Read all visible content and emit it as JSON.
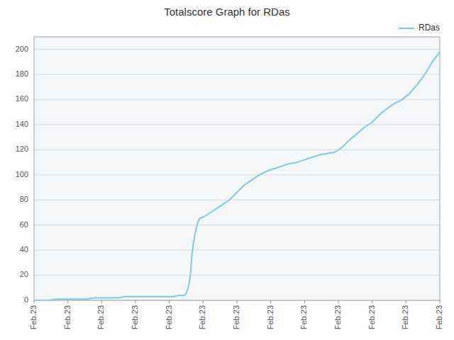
{
  "chart_data": {
    "type": "line",
    "title": "Totalscore Graph for RDas",
    "x": [
      0,
      0.5,
      1,
      1.5,
      2,
      2.5,
      3,
      3.5,
      4,
      4.3,
      4.6,
      5,
      5.3,
      5.6,
      6,
      6.3,
      6.6,
      7,
      7.3,
      7.6,
      8,
      8.3,
      8.6,
      9,
      9.3,
      9.6,
      10,
      10.1,
      10.2,
      10.3,
      10.4,
      10.5,
      10.6,
      10.7,
      10.8,
      10.9,
      11,
      11.5,
      12,
      12.5,
      13,
      13.5,
      14,
      14.5,
      15,
      15.5,
      16,
      16.5,
      17,
      17.5,
      18,
      18.5,
      19,
      19.5,
      20,
      20.5,
      21,
      21.5,
      22,
      22.5,
      23,
      23.5,
      24,
      24.5,
      25,
      25.5,
      26,
      26.5,
      27
    ],
    "series": [
      {
        "name": "RDas",
        "color": "#7ec8e3",
        "values": [
          0,
          0,
          0,
          1,
          1,
          1,
          1,
          1,
          2,
          2,
          2,
          2,
          2,
          2,
          3,
          3,
          3,
          3,
          3,
          3,
          3,
          3,
          3,
          3,
          3,
          4,
          4,
          5,
          8,
          12,
          20,
          35,
          45,
          52,
          58,
          62,
          65,
          68,
          72,
          76,
          80,
          86,
          92,
          96,
          100,
          103,
          105,
          107,
          109,
          110,
          112,
          114,
          116,
          117,
          118,
          122,
          128,
          133,
          138,
          142,
          148,
          153,
          157,
          160,
          165,
          172,
          180,
          190,
          198
        ]
      }
    ],
    "xlim": [
      0,
      27
    ],
    "xticks": [
      {
        "value": 0,
        "label": "Feb.23"
      },
      {
        "value": 2.25,
        "label": "Feb.23"
      },
      {
        "value": 4.5,
        "label": "Feb.23"
      },
      {
        "value": 6.75,
        "label": "Feb.23"
      },
      {
        "value": 9,
        "label": "Feb.23"
      },
      {
        "value": 11.25,
        "label": "Feb.23"
      },
      {
        "value": 13.5,
        "label": "Feb.23"
      },
      {
        "value": 15.75,
        "label": "Feb.23"
      },
      {
        "value": 18,
        "label": "Feb.23"
      },
      {
        "value": 20.25,
        "label": "Feb.23"
      },
      {
        "value": 22.5,
        "label": "Feb.23"
      },
      {
        "value": 24.75,
        "label": "Feb.23"
      },
      {
        "value": 27,
        "label": "Feb.23"
      }
    ],
    "ylim": [
      0,
      210
    ],
    "yticks": [
      0,
      20,
      40,
      60,
      80,
      100,
      120,
      140,
      160,
      180,
      200
    ],
    "grid": true,
    "legend": "upper right"
  }
}
